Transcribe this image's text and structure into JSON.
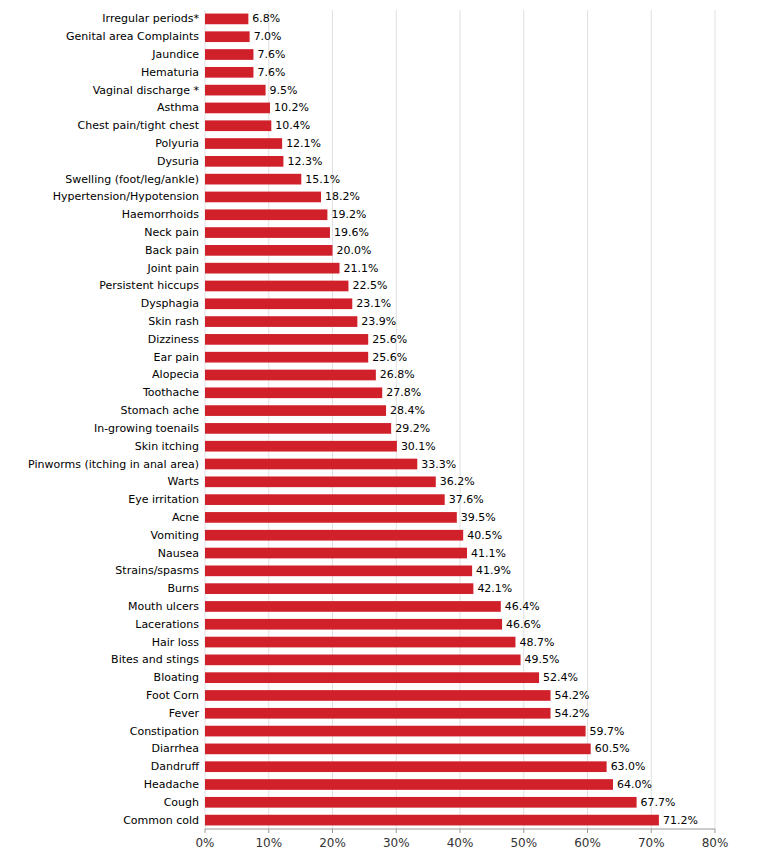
{
  "chart_data": {
    "type": "bar",
    "orientation": "horizontal",
    "categories": [
      "Common cold",
      "Cough",
      "Headache",
      "Dandruff",
      "Diarrhea",
      "Constipation",
      "Fever",
      "Foot Corn",
      "Bloating",
      "Bites and stings",
      "Hair loss",
      "Lacerations",
      "Mouth ulcers",
      "Burns",
      "Strains/spasms",
      "Nausea",
      "Vomiting",
      "Acne",
      "Eye irritation",
      "Warts",
      "Pinworms (itching in anal area)",
      "Skin itching",
      "In-growing toenails",
      "Stomach ache",
      "Toothache",
      "Alopecia",
      "Ear pain",
      "Dizziness",
      "Skin rash",
      "Dysphagia",
      "Persistent hiccups",
      "Joint pain",
      "Back pain",
      "Neck pain",
      "Haemorrhoids",
      "Hypertension/Hypotension",
      "Swelling (foot/leg/ankle)",
      "Dysuria",
      "Polyuria",
      "Chest pain/tight chest",
      "Asthma",
      "Vaginal discharge *",
      "Hematuria",
      "Jaundice",
      "Genital area Complaints",
      "Irregular periods*"
    ],
    "values": [
      71.2,
      67.7,
      64.0,
      63.0,
      60.5,
      59.7,
      54.2,
      54.2,
      52.4,
      49.5,
      48.7,
      46.6,
      46.4,
      42.1,
      41.9,
      41.1,
      40.5,
      39.5,
      37.6,
      36.2,
      33.3,
      30.1,
      29.2,
      28.4,
      27.8,
      26.8,
      25.6,
      25.6,
      23.9,
      23.1,
      22.5,
      21.1,
      20.0,
      19.6,
      19.2,
      18.2,
      15.1,
      12.3,
      12.1,
      10.4,
      10.2,
      9.5,
      7.6,
      7.6,
      7.0,
      6.8
    ],
    "value_labels": [
      "71.2%",
      "67.7%",
      "64.0%",
      "63.0%",
      "60.5%",
      "59.7%",
      "54.2%",
      "54.2%",
      "52.4%",
      "49.5%",
      "48.7%",
      "46.6%",
      "46.4%",
      "42.1%",
      "41.9%",
      "41.1%",
      "40.5%",
      "39.5%",
      "37.6%",
      "36.2%",
      "33.3%",
      "30.1%",
      "29.2%",
      "28.4%",
      "27.8%",
      "26.8%",
      "25.6%",
      "25.6%",
      "23.9%",
      "23.1%",
      "22.5%",
      "21.1%",
      "20.0%",
      "19.6%",
      "19.2%",
      "18.2%",
      "15.1%",
      "12.3%",
      "12.1%",
      "10.4%",
      "10.2%",
      "9.5%",
      "7.6%",
      "7.6%",
      "7.0%",
      "6.8%"
    ],
    "data_labels": true,
    "color": "#d0202a",
    "xlim": [
      0,
      80
    ],
    "xticks": [
      {
        "value": 0,
        "label": "0%"
      },
      {
        "value": 10,
        "label": "10%"
      },
      {
        "value": 20,
        "label": "20%"
      },
      {
        "value": 30,
        "label": "30%"
      },
      {
        "value": 40,
        "label": "40%"
      },
      {
        "value": 50,
        "label": "50%"
      },
      {
        "value": 60,
        "label": "60%"
      },
      {
        "value": 70,
        "label": "70%"
      },
      {
        "value": 80,
        "label": "80%"
      }
    ],
    "grid": true
  }
}
